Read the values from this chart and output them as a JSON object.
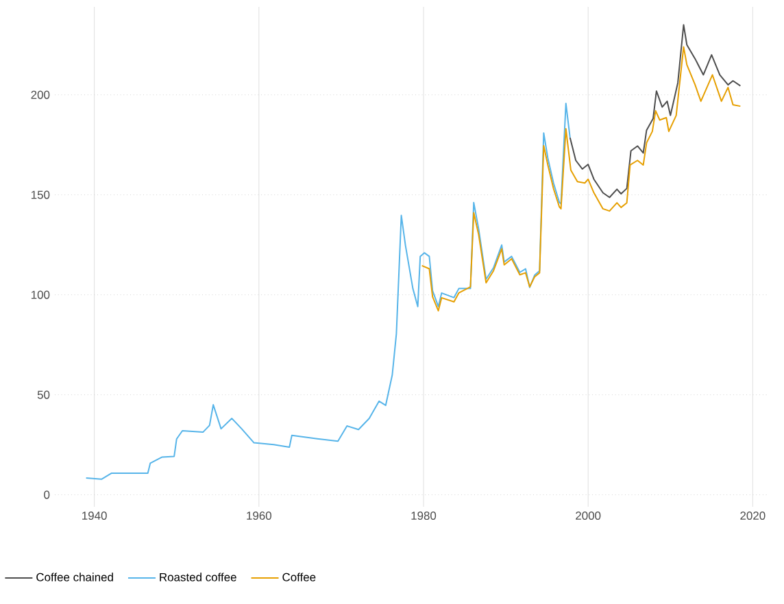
{
  "chart_data": {
    "type": "line",
    "xlim": [
      1935.2,
      2021.8
    ],
    "ylim": [
      -6,
      244
    ],
    "xticks": [
      1940,
      1960,
      1980,
      2000,
      2020
    ],
    "yticks": [
      0,
      50,
      100,
      150,
      200
    ],
    "grid": true,
    "legend": "bottom left",
    "series": [
      {
        "name": "Coffee chained",
        "color": "#4d4d4d",
        "x": [
          1997.8,
          1998.5,
          1999.3,
          2000,
          2000.7,
          2001.8,
          2002.6,
          2003.5,
          2004,
          2004.7,
          2005.2,
          2006,
          2006.7,
          2007.1,
          2007.9,
          2008.3,
          2009,
          2009.6,
          2010,
          2010.9,
          2011.6,
          2012,
          2013,
          2014,
          2015,
          2016,
          2017,
          2017.6,
          2018.5
        ],
        "values": [
          178.6,
          167.2,
          162.9,
          165.2,
          157.8,
          151,
          148.7,
          152.8,
          150.5,
          153.2,
          172,
          174.4,
          170.9,
          182.3,
          188.2,
          201.9,
          193.9,
          196.8,
          189.7,
          206,
          235,
          225,
          218,
          210,
          220,
          210,
          205,
          207,
          204.5
        ]
      },
      {
        "name": "Roasted coffee",
        "color": "#56b4e9",
        "x": [
          1939.0,
          1940.9,
          1942.1,
          1946.5,
          1946.8,
          1948.2,
          1949.7,
          1950,
          1950.7,
          1953.2,
          1954,
          1954.45,
          1955.4,
          1956.7,
          1957.9,
          1959.4,
          1961.8,
          1963.7,
          1964,
          1967.1,
          1969.6,
          1970.7,
          1972.1,
          1973.4,
          1974.6,
          1975.4,
          1976.2,
          1976.7,
          1977.3,
          1977.8,
          1978.7,
          1979.3,
          1979.6,
          1980.1,
          1980.7,
          1981.1,
          1981.8,
          1982.2,
          1983.7,
          1984.3,
          1985.7,
          1986.1,
          1986.7,
          1987.6,
          1988.5,
          1989.5,
          1989.8,
          1990.7,
          1991.7,
          1992.4,
          1992.9,
          1993.5,
          1994.1,
          1994.6,
          1995.1,
          1995.8,
          1996.5,
          1996.7,
          1997.3,
          1997.8
        ],
        "values": [
          8.4,
          7.8,
          10.8,
          10.8,
          15.8,
          18.8,
          19.2,
          27.9,
          32,
          31.3,
          34.7,
          45,
          33,
          38.2,
          33,
          26,
          25.1,
          23.8,
          29.7,
          28,
          26.8,
          34.4,
          32.6,
          38.2,
          46.8,
          44.7,
          59.9,
          80.4,
          139.7,
          124.8,
          103.2,
          94.1,
          119.2,
          121,
          119.2,
          102,
          94.1,
          100.9,
          98.6,
          103.2,
          103.2,
          146.1,
          132.9,
          107.8,
          113.5,
          124.9,
          116.4,
          119.2,
          111.2,
          113,
          103.7,
          109.8,
          112,
          180.9,
          168.4,
          155.8,
          146.2,
          145.5,
          195.7,
          178.6
        ]
      },
      {
        "name": "Coffee",
        "color": "#e69f00",
        "x": [
          1979.8,
          1980.7,
          1981.1,
          1981.8,
          1982.2,
          1983.7,
          1984.3,
          1985.7,
          1986.1,
          1986.7,
          1987.6,
          1988.5,
          1989.5,
          1989.8,
          1990.7,
          1991.7,
          1992.4,
          1992.9,
          1993.5,
          1994.1,
          1994.6,
          1995.1,
          1995.8,
          1996.5,
          1996.7,
          1997.3,
          1997.9,
          1998.7,
          1999.6,
          2000,
          2000.7,
          2001.8,
          2002.6,
          2003.5,
          2004,
          2004.7,
          2005.1,
          2006,
          2006.7,
          2007.1,
          2007.8,
          2008.2,
          2008.7,
          2009.5,
          2009.8,
          2010.7,
          2011.6,
          2012,
          2013,
          2013.7,
          2015.1,
          2016.2,
          2017,
          2017.6,
          2018.5
        ],
        "values": [
          114.6,
          113,
          99,
          92,
          98.5,
          96.5,
          101,
          104,
          141,
          130,
          106,
          112,
          123,
          115,
          118,
          110,
          111,
          104,
          109,
          111,
          174.6,
          165,
          153,
          144,
          143,
          183,
          162.3,
          156.6,
          155.9,
          157.8,
          151,
          143,
          141.9,
          146,
          143.7,
          146,
          164.9,
          167.2,
          164.9,
          176,
          181.7,
          192,
          187.4,
          188.6,
          181.7,
          189.7,
          224,
          215,
          205,
          196.8,
          210,
          196.8,
          203.7,
          195,
          194.3
        ]
      }
    ]
  }
}
